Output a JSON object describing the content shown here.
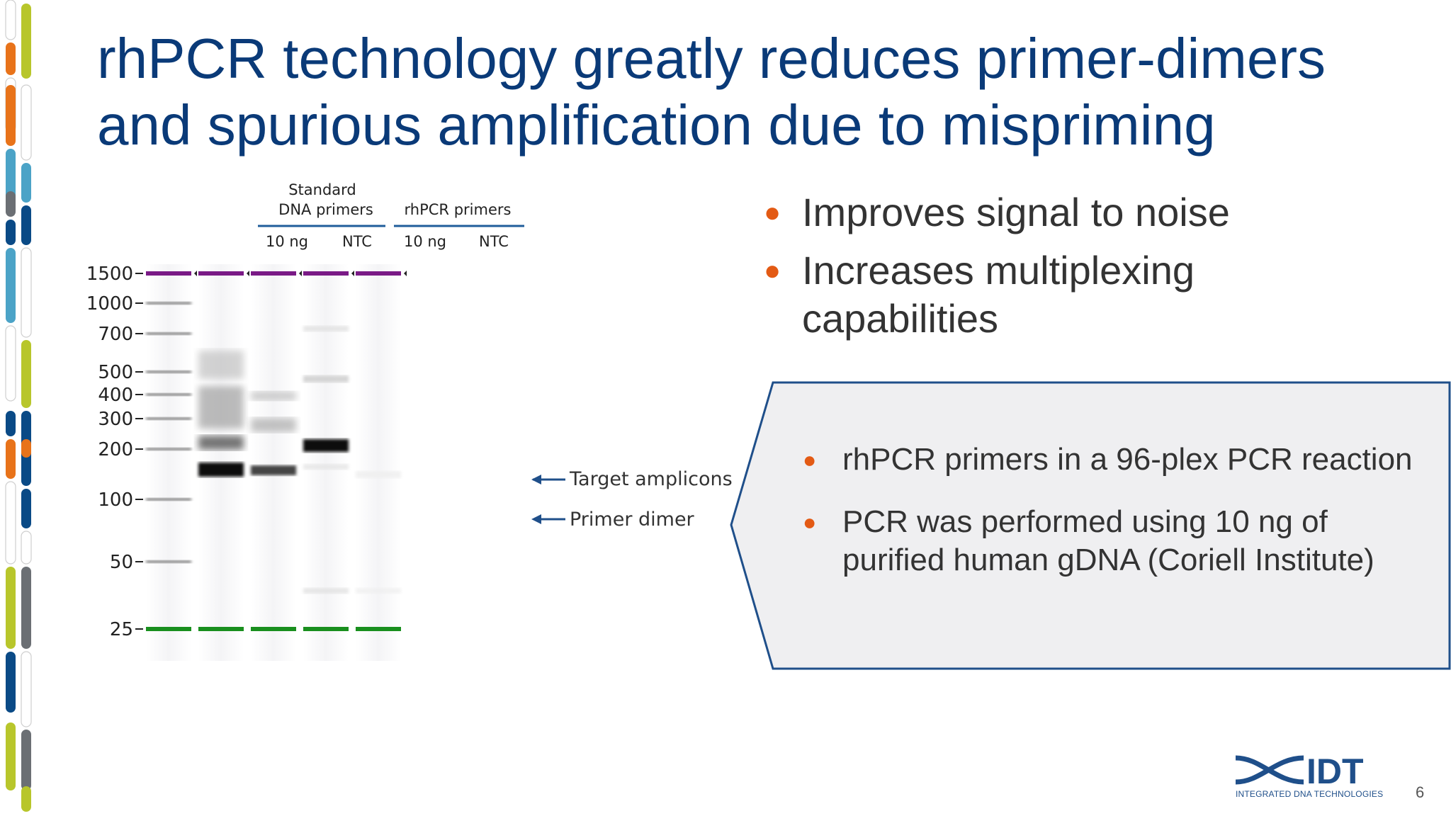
{
  "slide": {
    "title_line1": "rhPCR technology greatly reduces primer-dimers",
    "title_line2": "and spurious amplification due to mispriming",
    "page_number": "6"
  },
  "gel": {
    "group_standard_line1": "Standard",
    "group_standard_line2": "DNA primers",
    "group_rhpcr": "rhPCR primers",
    "lanes": [
      "10 ng",
      "NTC",
      "10 ng",
      "NTC"
    ],
    "ladder": [
      "1500",
      "1000",
      "700",
      "500",
      "400",
      "300",
      "200",
      "100",
      "50",
      "25"
    ],
    "annotation_target": "Target amplicons",
    "annotation_dimer": "Primer dimer",
    "marker_colors": {
      "upper": "#7a1a86",
      "lower": "#198f1e"
    }
  },
  "bullets": [
    {
      "text_line1": "Improves signal to noise",
      "text_line2": ""
    },
    {
      "text_line1": "Increases multiplexing",
      "text_line2": "capabilities"
    }
  ],
  "callout": {
    "items": [
      {
        "line1": "rhPCR primers in a 96-plex PCR reaction",
        "line2": ""
      },
      {
        "line1": "PCR was performed using 10 ng of",
        "line2": "purified human gDNA (Coriell Institute)"
      }
    ]
  },
  "logo": {
    "text": "IDT",
    "subtext": "INTEGRATED DNA TECHNOLOGIES"
  },
  "colors": {
    "title": "#0a3a78",
    "bullet_dot": "#e35a14",
    "body_text": "#333333",
    "callout_fill": "#efeff1",
    "callout_border": "#1f4f8a"
  }
}
